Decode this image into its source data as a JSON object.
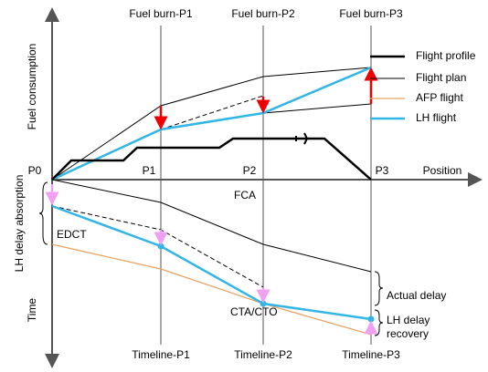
{
  "axes": {
    "y_labels": [
      "Fuel consumption",
      "LH delay absorption",
      "Time"
    ],
    "x_label": "Position",
    "positions": [
      "P0",
      "P1",
      "P2",
      "P3"
    ]
  },
  "fuel_burn_labels": [
    "Fuel burn-P1",
    "Fuel burn-P2",
    "Fuel burn-P3"
  ],
  "timeline_labels": [
    "Timeline-P1",
    "Timeline-P2",
    "Timeline-P3"
  ],
  "legend": [
    "Flight profile",
    "Flight plan",
    "AFP flight",
    "LH flight"
  ],
  "annotations": {
    "fca": "FCA",
    "edct": "EDCT",
    "cta_cto": "CTA/CTO",
    "actual_delay": "Actual delay",
    "lh_delay_recovery": [
      "LH delay",
      "recovery"
    ]
  }
}
